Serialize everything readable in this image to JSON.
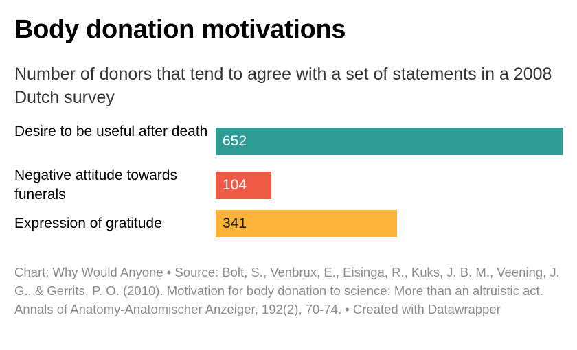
{
  "header": {
    "title": "Body donation motivations",
    "subtitle": "Number of donors that tend to agree with a set of statements in a 2008 Dutch survey"
  },
  "footer": {
    "text": "Chart: Why Would Anyone • Source: Bolt, S., Venbrux, E., Eisinga, R., Kuks, J. B. M., Veening, J. G., & Gerrits, P. O. (2010). Motivation for body donation to science: More than an altruistic act. Annals of Anatomy-Anatomischer Anzeiger, 192(2), 70-74. • Created with Datawrapper"
  },
  "chart_data": {
    "type": "bar",
    "orientation": "horizontal",
    "title": "Body donation motivations",
    "subtitle": "Number of donors that tend to agree with a set of statements in a 2008 Dutch survey",
    "xlabel": "",
    "ylabel": "",
    "grid": false,
    "xlim": [
      0,
      652
    ],
    "categories": [
      "Desire to be useful after death",
      "Negative attitude towards funerals",
      "Expression of gratitude"
    ],
    "values": [
      652,
      104,
      341
    ],
    "value_labels": [
      "652",
      "104",
      "341"
    ],
    "colors": [
      "#2e9b94",
      "#ee5a45",
      "#fbb33a"
    ],
    "value_label_colors": [
      "#ffffff",
      "#ffffff",
      "#1a1a1a"
    ]
  }
}
